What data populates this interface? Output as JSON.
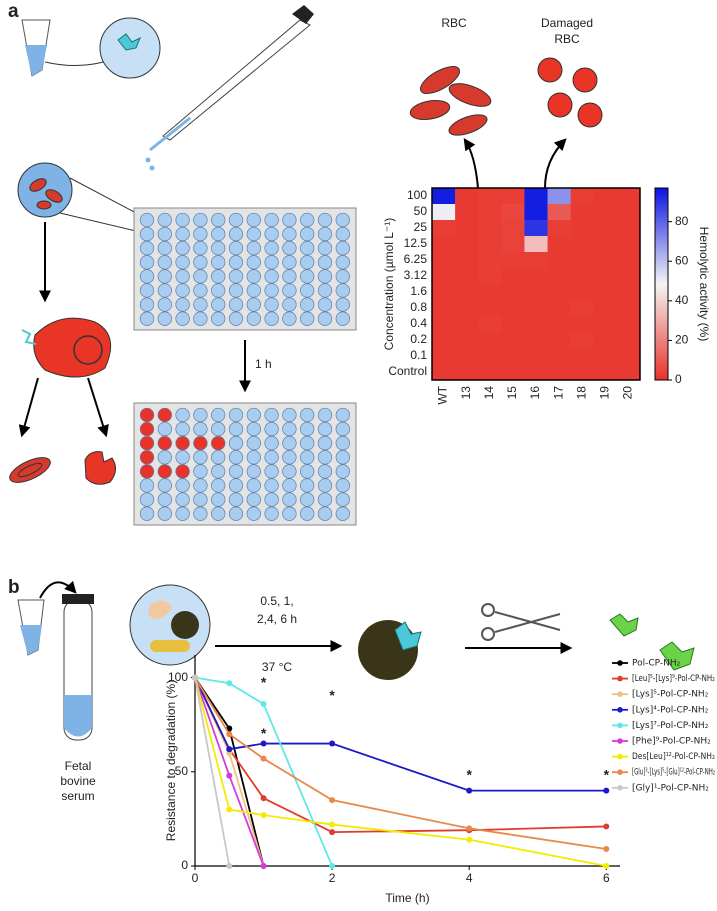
{
  "panel_labels": [
    "a",
    "b"
  ],
  "illustration_labels": {
    "rbc": "RBC",
    "damaged_rbc": [
      "Damaged",
      "RBC"
    ],
    "incubation": "1 h",
    "times": [
      "0.5, 1,",
      "2,4, 6 h"
    ],
    "temperature": "37 °C",
    "serum": [
      "Fetal",
      "bovine",
      "serum"
    ]
  },
  "chart_data": [
    {
      "type": "heatmap",
      "x_categories": [
        "WT",
        "13",
        "14",
        "15",
        "16",
        "17",
        "18",
        "19",
        "20"
      ],
      "y_categories": [
        "100",
        "50",
        "25",
        "12.5",
        "6.25",
        "3.12",
        "1.6",
        "0.8",
        "0.4",
        "0.2",
        "0.1",
        "Control"
      ],
      "ylabel": "Concentration (µmol L⁻¹)",
      "values": [
        [
          95,
          2,
          3,
          3,
          95,
          70,
          3,
          2,
          2
        ],
        [
          50,
          2,
          3,
          5,
          95,
          10,
          2,
          2,
          2
        ],
        [
          3,
          2,
          3,
          4,
          90,
          3,
          2,
          2,
          2
        ],
        [
          2,
          2,
          3,
          4,
          35,
          2,
          2,
          2,
          2
        ],
        [
          2,
          2,
          3,
          3,
          3,
          2,
          2,
          2,
          2
        ],
        [
          2,
          2,
          3,
          2,
          2,
          2,
          2,
          2,
          2
        ],
        [
          2,
          2,
          2,
          2,
          2,
          2,
          2,
          2,
          2
        ],
        [
          2,
          2,
          2,
          2,
          2,
          2,
          3,
          2,
          2
        ],
        [
          2,
          2,
          3,
          2,
          2,
          2,
          2,
          2,
          2
        ],
        [
          2,
          2,
          2,
          2,
          2,
          2,
          3,
          2,
          2
        ],
        [
          2,
          2,
          2,
          2,
          2,
          2,
          2,
          2,
          2
        ],
        [
          2,
          2,
          2,
          2,
          2,
          2,
          2,
          2,
          2
        ]
      ],
      "colorbar_label": "Hemolytic activity (%)",
      "zlim": [
        0,
        97
      ],
      "zticks": [
        0,
        20,
        40,
        60,
        80
      ],
      "colors": [
        "#e8322a",
        "#f4f4f4",
        "#0a14e1"
      ]
    },
    {
      "type": "line",
      "xlabel": "Time (h)",
      "ylabel": "Resistance to degradation (%)",
      "x": [
        0,
        0.5,
        1,
        2,
        4,
        6
      ],
      "xlim": [
        0,
        6.2
      ],
      "xticks": [
        0,
        2,
        4,
        6
      ],
      "ylim": [
        0,
        112
      ],
      "yticks": [
        0,
        50,
        100
      ],
      "series": [
        {
          "name": "Pol-CP-NH₂",
          "color": "#000000",
          "values": [
            100,
            73,
            0,
            null,
            null,
            null
          ]
        },
        {
          "name": "[Leu]⁵-[Lys]⁹-Pol-CP-NH₂",
          "color": "#e03c2c",
          "values": [
            100,
            62,
            36,
            18,
            19,
            21
          ]
        },
        {
          "name": "[Lys]⁵-Pol-CP-NH₂",
          "color": "#f0c080",
          "values": [
            100,
            60,
            0,
            null,
            null,
            null
          ]
        },
        {
          "name": "[Lys]⁴-Pol-CP-NH₂",
          "color": "#1a1ac8",
          "values": [
            100,
            62,
            65,
            65,
            40,
            40
          ]
        },
        {
          "name": "[Lys]⁷-Pol-CP-NH₂",
          "color": "#5ee8e8",
          "values": [
            100,
            97,
            86,
            0,
            null,
            null
          ]
        },
        {
          "name": "[Phe]⁹-Pol-CP-NH₂",
          "color": "#d63cd6",
          "values": [
            100,
            48,
            0,
            null,
            null,
            null
          ]
        },
        {
          "name": "Des[Leu]¹²-Pol-CP-NH₂",
          "color": "#f2ec00",
          "values": [
            100,
            30,
            27,
            22,
            14,
            0
          ]
        },
        {
          "name": "[Glu]³-[Lys]⁵-[Glu]¹²-Pol-CP-NH₂",
          "color": "#e8894a",
          "values": [
            100,
            70,
            57,
            35,
            20,
            9
          ]
        },
        {
          "name": "[Gly]¹-Pol-CP-NH₂",
          "color": "#c8c8c8",
          "values": [
            100,
            0,
            null,
            null,
            null,
            null
          ]
        }
      ],
      "annotations": [
        {
          "text": "*",
          "x": 1,
          "y": 97
        },
        {
          "text": "*",
          "x": 1,
          "y": 70
        },
        {
          "text": "*",
          "x": 2,
          "y": 90
        },
        {
          "text": "*",
          "x": 4,
          "y": 48
        },
        {
          "text": "*",
          "x": 6,
          "y": 48
        }
      ]
    }
  ]
}
